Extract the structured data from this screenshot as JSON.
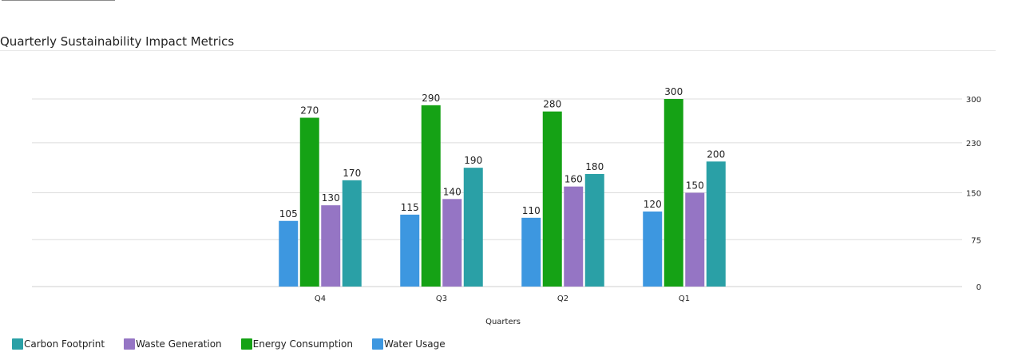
{
  "chart_data": {
    "type": "bar",
    "title": "Quarterly Sustainability Impact Metrics",
    "xlabel": "Quarters",
    "ylabel": "",
    "categories": [
      "Q4",
      "Q3",
      "Q2",
      "Q1"
    ],
    "ylim": [
      0,
      300
    ],
    "yticks": [
      0,
      75,
      150,
      230,
      300
    ],
    "y_axis_side": "right",
    "grid": true,
    "legend_position": "bottom-left",
    "series": [
      {
        "name": "Water Usage",
        "color": "#3d97e0",
        "values": [
          105,
          115,
          110,
          120
        ]
      },
      {
        "name": "Energy Consumption",
        "color": "#15a215",
        "values": [
          270,
          290,
          280,
          300
        ]
      },
      {
        "name": "Waste Generation",
        "color": "#9575c4",
        "values": [
          130,
          140,
          160,
          150
        ]
      },
      {
        "name": "Carbon Footprint",
        "color": "#2aa0a6",
        "values": [
          170,
          190,
          180,
          200
        ]
      }
    ],
    "legend_order": [
      "Carbon Footprint",
      "Waste Generation",
      "Energy Consumption",
      "Water Usage"
    ]
  }
}
